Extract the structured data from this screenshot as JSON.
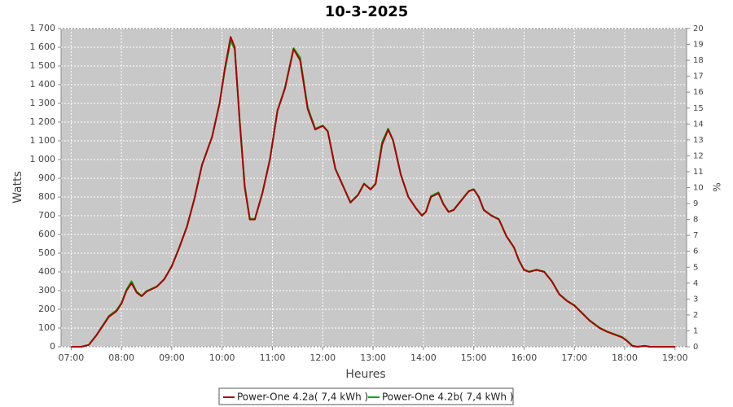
{
  "chart_data": {
    "type": "line",
    "title": "10-3-2025",
    "xlabel": "Heures",
    "ylabel": "Watts",
    "y2label": "%",
    "x": [
      7.0,
      7.2,
      7.35,
      7.5,
      7.65,
      7.75,
      7.9,
      8.0,
      8.1,
      8.2,
      8.3,
      8.4,
      8.5,
      8.7,
      8.85,
      9.0,
      9.15,
      9.3,
      9.45,
      9.6,
      9.8,
      9.95,
      10.05,
      10.17,
      10.25,
      10.35,
      10.45,
      10.55,
      10.65,
      10.8,
      10.95,
      11.1,
      11.25,
      11.42,
      11.55,
      11.7,
      11.85,
      12.0,
      12.1,
      12.25,
      12.4,
      12.55,
      12.7,
      12.82,
      12.95,
      13.05,
      13.18,
      13.3,
      13.4,
      13.55,
      13.7,
      13.85,
      13.97,
      14.05,
      14.15,
      14.3,
      14.4,
      14.5,
      14.6,
      14.75,
      14.9,
      15.0,
      15.1,
      15.2,
      15.35,
      15.5,
      15.65,
      15.8,
      15.9,
      16.0,
      16.1,
      16.25,
      16.4,
      16.55,
      16.7,
      16.85,
      17.0,
      17.15,
      17.3,
      17.5,
      17.65,
      17.8,
      17.95,
      18.05,
      18.15,
      18.25,
      18.4,
      18.5,
      19.0
    ],
    "series": [
      {
        "name": "Power-One 4.2a( 7,4 kWh )",
        "color": "#aa0000",
        "values": [
          0,
          0,
          10,
          60,
          120,
          160,
          190,
          230,
          300,
          340,
          290,
          270,
          295,
          320,
          360,
          430,
          530,
          640,
          790,
          970,
          1120,
          1300,
          1480,
          1655,
          1600,
          1200,
          850,
          680,
          680,
          820,
          1000,
          1260,
          1380,
          1590,
          1530,
          1270,
          1160,
          1180,
          1150,
          950,
          860,
          770,
          810,
          870,
          840,
          870,
          1080,
          1160,
          1100,
          920,
          800,
          740,
          700,
          720,
          800,
          820,
          760,
          720,
          730,
          780,
          830,
          840,
          800,
          730,
          700,
          680,
          590,
          530,
          460,
          410,
          400,
          410,
          400,
          350,
          280,
          245,
          220,
          180,
          140,
          100,
          80,
          65,
          50,
          30,
          5,
          0,
          5,
          0,
          0
        ]
      },
      {
        "name": "Power-One 4.2b( 7,4 kWh )",
        "color": "#00aa00",
        "values": [
          0,
          0,
          10,
          62,
          124,
          165,
          195,
          235,
          305,
          350,
          295,
          272,
          298,
          322,
          362,
          432,
          532,
          642,
          792,
          972,
          1122,
          1302,
          1470,
          1635,
          1590,
          1210,
          860,
          685,
          682,
          822,
          1002,
          1262,
          1385,
          1595,
          1545,
          1280,
          1165,
          1182,
          1152,
          952,
          862,
          772,
          812,
          872,
          842,
          872,
          1095,
          1165,
          1102,
          922,
          802,
          742,
          702,
          722,
          805,
          825,
          762,
          722,
          732,
          782,
          832,
          842,
          802,
          732,
          702,
          682,
          592,
          532,
          462,
          412,
          402,
          412,
          402,
          352,
          282,
          247,
          222,
          182,
          142,
          102,
          82,
          67,
          52,
          32,
          6,
          0,
          5,
          0,
          0
        ]
      }
    ],
    "xlim": [
      6.8,
      19.23
    ],
    "ylim": [
      0,
      1700
    ],
    "y2lim": [
      0,
      20
    ],
    "xticks": [
      {
        "value": 7,
        "label": "07:00"
      },
      {
        "value": 8,
        "label": "08:00"
      },
      {
        "value": 9,
        "label": "09:00"
      },
      {
        "value": 10,
        "label": "10:00"
      },
      {
        "value": 11,
        "label": "11:00"
      },
      {
        "value": 12,
        "label": "12:00"
      },
      {
        "value": 13,
        "label": "13:00"
      },
      {
        "value": 14,
        "label": "14:00"
      },
      {
        "value": 15,
        "label": "15:00"
      },
      {
        "value": 16,
        "label": "16:00"
      },
      {
        "value": 17,
        "label": "17:00"
      },
      {
        "value": 18,
        "label": "18:00"
      },
      {
        "value": 19,
        "label": "19:00"
      }
    ],
    "yticks": [
      0,
      100,
      200,
      300,
      400,
      500,
      600,
      700,
      800,
      900,
      {
        "value": 1000,
        "label": "1 000"
      },
      {
        "value": 1100,
        "label": "1 100"
      },
      {
        "value": 1200,
        "label": "1 200"
      },
      {
        "value": 1300,
        "label": "1 300"
      },
      {
        "value": 1400,
        "label": "1 400"
      },
      {
        "value": 1500,
        "label": "1 500"
      },
      {
        "value": 1600,
        "label": "1 600"
      },
      {
        "value": 1700,
        "label": "1 700"
      }
    ],
    "y2ticks": [
      0,
      1,
      2,
      3,
      4,
      5,
      6,
      7,
      8,
      9,
      10,
      11,
      12,
      13,
      14,
      15,
      16,
      17,
      18,
      19,
      20
    ],
    "grid": true
  }
}
